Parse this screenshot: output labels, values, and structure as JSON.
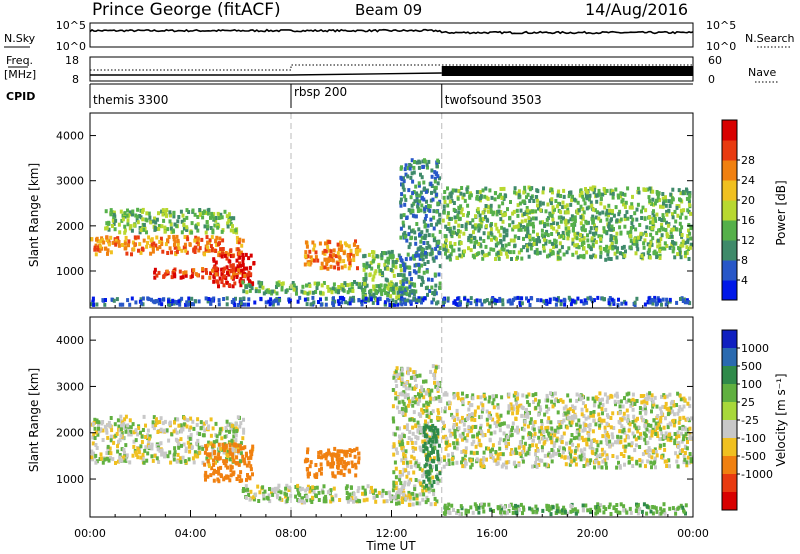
{
  "header": {
    "station": "Prince George (fitACF)",
    "beam": "Beam 09",
    "date": "14/Aug/2016"
  },
  "strip_labels": {
    "nsky": "N.Sky",
    "nsky_top": "10^5",
    "nsky_bottom": "10^0",
    "nsearch": "N.Search",
    "nsearch_top": "10^5",
    "nsearch_bottom": "10^0",
    "freq": "Freq.",
    "freq_unit": "[MHz]",
    "freq_top": "18",
    "freq_bottom": "8",
    "nave": "Nave",
    "nave_top": "60",
    "nave_bottom": "0",
    "cpid": "CPID"
  },
  "cpid_segments": [
    {
      "start_hour": 0,
      "label": "themis 3300"
    },
    {
      "start_hour": 8,
      "label": "rbsp 200"
    },
    {
      "start_hour": 14,
      "label": "twofsound 3503"
    }
  ],
  "x_axis": {
    "label": "Time UT",
    "ticks": [
      "00:00",
      "04:00",
      "08:00",
      "12:00",
      "16:00",
      "20:00",
      "00:00"
    ]
  },
  "y_axis": {
    "label": "Slant Range [km]",
    "ticks": [
      "1000",
      "2000",
      "3000",
      "4000"
    ]
  },
  "power_colorbar": {
    "label": "Power [dB]",
    "ticks": [
      "4",
      "8",
      "12",
      "16",
      "20",
      "24",
      "28"
    ],
    "colors": [
      "#0018e8",
      "#2857c8",
      "#3f8a6a",
      "#55b04a",
      "#b8d830",
      "#f0c020",
      "#f08010",
      "#e83a10",
      "#d80000"
    ]
  },
  "velocity_colorbar": {
    "label": "Velocity [m s⁻¹]",
    "ticks": [
      "1000",
      "500",
      "100",
      "25",
      "-25",
      "-100",
      "-500",
      "-1000"
    ],
    "colors": [
      "#1020c0",
      "#2a6ab0",
      "#2f8a4a",
      "#60b040",
      "#a8d83a",
      "#c8c8c8",
      "#f0c020",
      "#f08010",
      "#e83a10",
      "#d80000"
    ]
  },
  "chart_data": {
    "type": "heatmap",
    "x_range_hours": [
      0,
      24
    ],
    "y_range_km": [
      180,
      4500
    ],
    "strips": {
      "freq_mhz_range": [
        8,
        18
      ],
      "nave_range": [
        0,
        60
      ],
      "nsky_log_range": [
        0,
        5
      ]
    },
    "power_bands": [
      {
        "t0": 0,
        "t1": 6.2,
        "r0": 1300,
        "r1": 1800,
        "level": 6
      },
      {
        "t0": 4.8,
        "t1": 6.6,
        "r0": 600,
        "r1": 1400,
        "level": 8
      },
      {
        "t0": 2.5,
        "t1": 6.5,
        "r0": 800,
        "r1": 1100,
        "level": 7
      },
      {
        "t0": 0.5,
        "t1": 6,
        "r0": 1800,
        "r1": 2400,
        "level": 3
      },
      {
        "t0": 6,
        "t1": 13,
        "r0": 450,
        "r1": 800,
        "level": 3
      },
      {
        "t0": 8.5,
        "t1": 10.8,
        "r0": 1000,
        "r1": 1700,
        "level": 6
      },
      {
        "t0": 10.8,
        "t1": 12.5,
        "r0": 300,
        "r1": 1500,
        "level": 3
      },
      {
        "t0": 12.3,
        "t1": 14,
        "r0": 400,
        "r1": 3500,
        "level": 2
      },
      {
        "t0": 14,
        "t1": 24,
        "r0": 1200,
        "r1": 2900,
        "level": 3
      },
      {
        "t0": 0,
        "t1": 24,
        "r0": 200,
        "r1": 450,
        "level": 1
      }
    ],
    "velocity_bands": [
      {
        "t0": 0,
        "t1": 6.2,
        "r0": 1300,
        "r1": 2400,
        "v": 0
      },
      {
        "t0": 4.5,
        "t1": 6.6,
        "r0": 900,
        "r1": 1800,
        "v": -150
      },
      {
        "t0": 6,
        "t1": 13,
        "r0": 450,
        "r1": 900,
        "v": 20
      },
      {
        "t0": 8.5,
        "t1": 10.8,
        "r0": 1000,
        "r1": 1700,
        "v": -200
      },
      {
        "t0": 12,
        "t1": 14,
        "r0": 400,
        "r1": 3500,
        "v": 0
      },
      {
        "t0": 13.2,
        "t1": 14,
        "r0": 800,
        "r1": 2200,
        "v": 300
      },
      {
        "t0": 14,
        "t1": 24,
        "r0": 1200,
        "r1": 2900,
        "v": 0
      },
      {
        "t0": 14,
        "t1": 24,
        "r0": 200,
        "r1": 500,
        "v": 60
      }
    ]
  }
}
